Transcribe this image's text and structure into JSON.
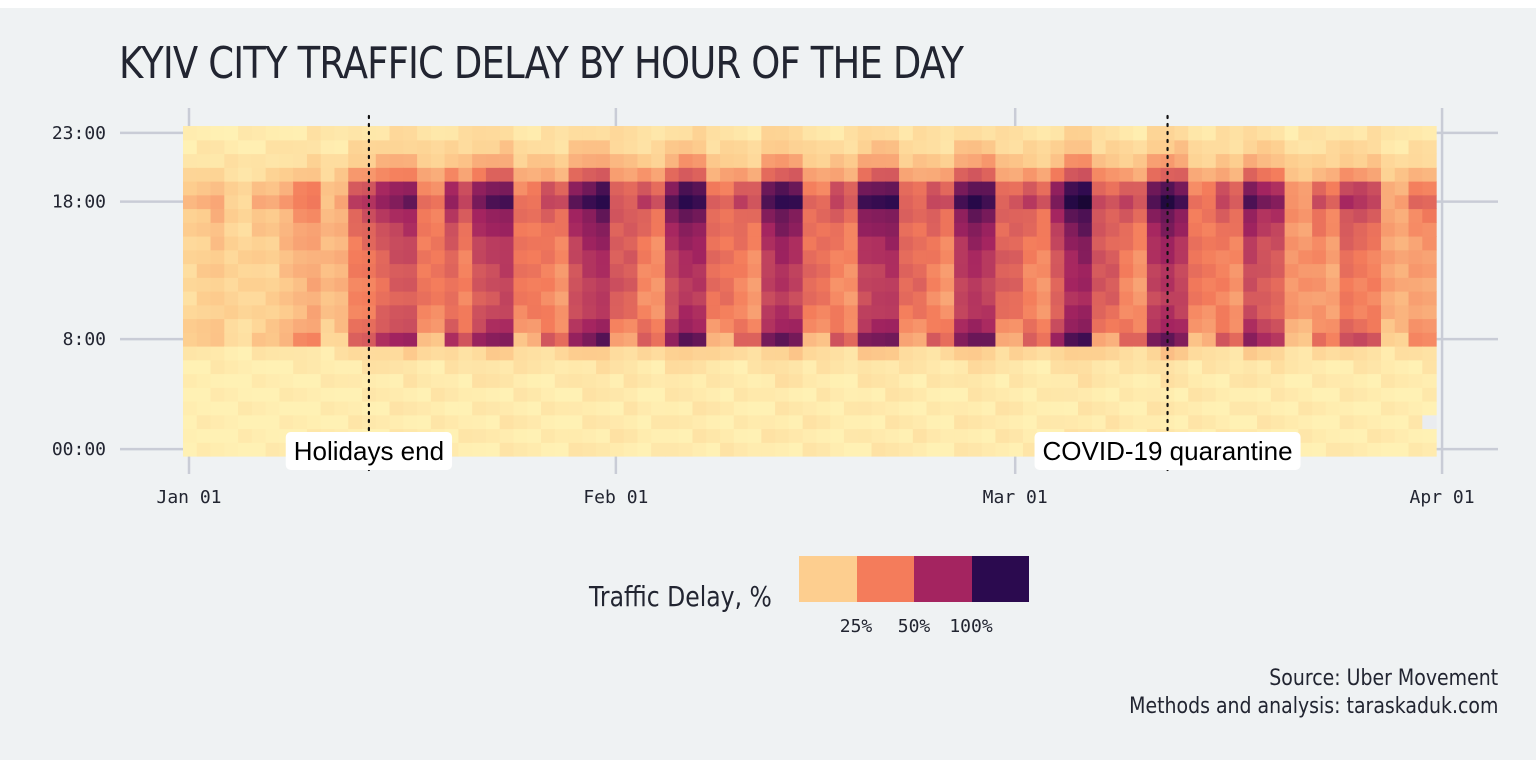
{
  "chart_data": {
    "type": "heatmap",
    "title": "KYIV CITY TRAFFIC DELAY BY HOUR OF THE DAY",
    "x_axis": {
      "ticks": [
        "Jan 01",
        "Feb 01",
        "Mar 01",
        "Apr 01"
      ],
      "range": [
        "2020-01-01",
        "2020-03-31"
      ]
    },
    "y_axis": {
      "ticks": [
        "00:00",
        "8:00",
        "18:00",
        "23:00"
      ],
      "range": [
        0,
        23
      ]
    },
    "annotations": [
      {
        "label": "Holidays end",
        "date": "2020-01-14"
      },
      {
        "label": "COVID-19 quarantine",
        "date": "2020-03-12"
      }
    ],
    "legend": {
      "title": "Traffic Delay, %",
      "labels": [
        "25%",
        "50%",
        "100%"
      ],
      "colors": [
        "#fdce8f",
        "#f47c5b",
        "#a42460",
        "#2b0a4f"
      ]
    },
    "caption": [
      "Source: Uber Movement",
      "Methods and analysis: taraskaduk.com"
    ],
    "colors": {
      "background": "#eff2f3",
      "grid": "#c9ccd6",
      "text": "#222531",
      "missing": "#eaecef"
    },
    "days": 91,
    "hours": 24,
    "value_scale": "Traffic Delay, %",
    "weekday_profile": [
      2,
      2,
      2,
      2,
      2,
      3,
      4,
      9,
      50,
      40,
      36,
      34,
      35,
      36,
      38,
      40,
      44,
      48,
      60,
      52,
      28,
      16,
      10,
      6
    ],
    "weekend_profile": [
      2,
      2,
      2,
      2,
      2,
      2,
      3,
      6,
      14,
      20,
      24,
      26,
      27,
      27,
      27,
      26,
      26,
      27,
      28,
      24,
      16,
      10,
      6,
      4
    ],
    "daily_intensity": [
      0.25,
      0.3,
      0.35,
      0.4,
      0.35,
      0.3,
      0.3,
      0.4,
      0.5,
      0.55,
      0.6,
      0.7,
      0.8,
      0.85,
      1.0,
      1.1,
      1.15,
      1.2,
      1.15,
      1.0,
      0.8,
      1.15,
      1.25,
      1.3,
      1.2,
      1.2,
      0.8,
      0.7,
      1.2,
      1.35,
      1.45,
      1.5,
      1.45,
      0.8,
      0.7,
      1.25,
      1.45,
      1.4,
      1.3,
      1.25,
      0.8,
      0.7,
      1.3,
      1.45,
      1.35,
      1.3,
      1.25,
      0.8,
      0.7,
      1.3,
      1.35,
      1.4,
      1.35,
      1.3,
      0.8,
      0.7,
      1.3,
      1.45,
      1.35,
      1.4,
      1.4,
      0.8,
      0.7,
      1.1,
      1.5,
      1.6,
      1.55,
      1.45,
      0.8,
      0.7,
      1.3,
      1.45,
      1.3,
      1.2,
      1.15,
      0.8,
      0.7,
      1.25,
      1.1,
      1.05,
      0.95,
      0.9,
      0.7,
      0.6,
      0.9,
      0.85,
      0.8,
      0.8,
      0.75,
      0.6,
      0.6
    ],
    "missing_cells": [
      {
        "day": 90,
        "hour": 2
      }
    ]
  }
}
